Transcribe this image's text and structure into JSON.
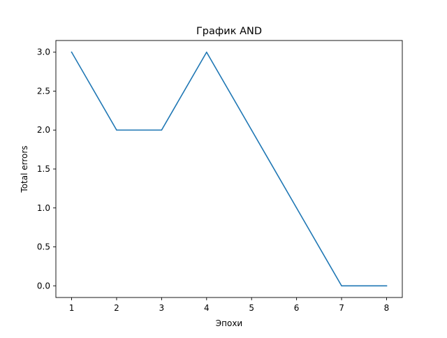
{
  "chart_data": {
    "type": "line",
    "title": "График AND",
    "xlabel": "Эпохи",
    "ylabel": "Total errors",
    "x": [
      1,
      2,
      3,
      4,
      5,
      6,
      7,
      8
    ],
    "series": [
      {
        "values": [
          3,
          2,
          2,
          3,
          2,
          1,
          0,
          0
        ],
        "color": "#1f77b4"
      }
    ],
    "xticks": [
      "1",
      "2",
      "3",
      "4",
      "5",
      "6",
      "7",
      "8"
    ],
    "yticks": [
      "0.0",
      "0.5",
      "1.0",
      "1.5",
      "2.0",
      "2.5",
      "3.0"
    ],
    "xlim": [
      0.65,
      8.35
    ],
    "ylim": [
      -0.15,
      3.15
    ],
    "grid": false,
    "legend": "none"
  }
}
